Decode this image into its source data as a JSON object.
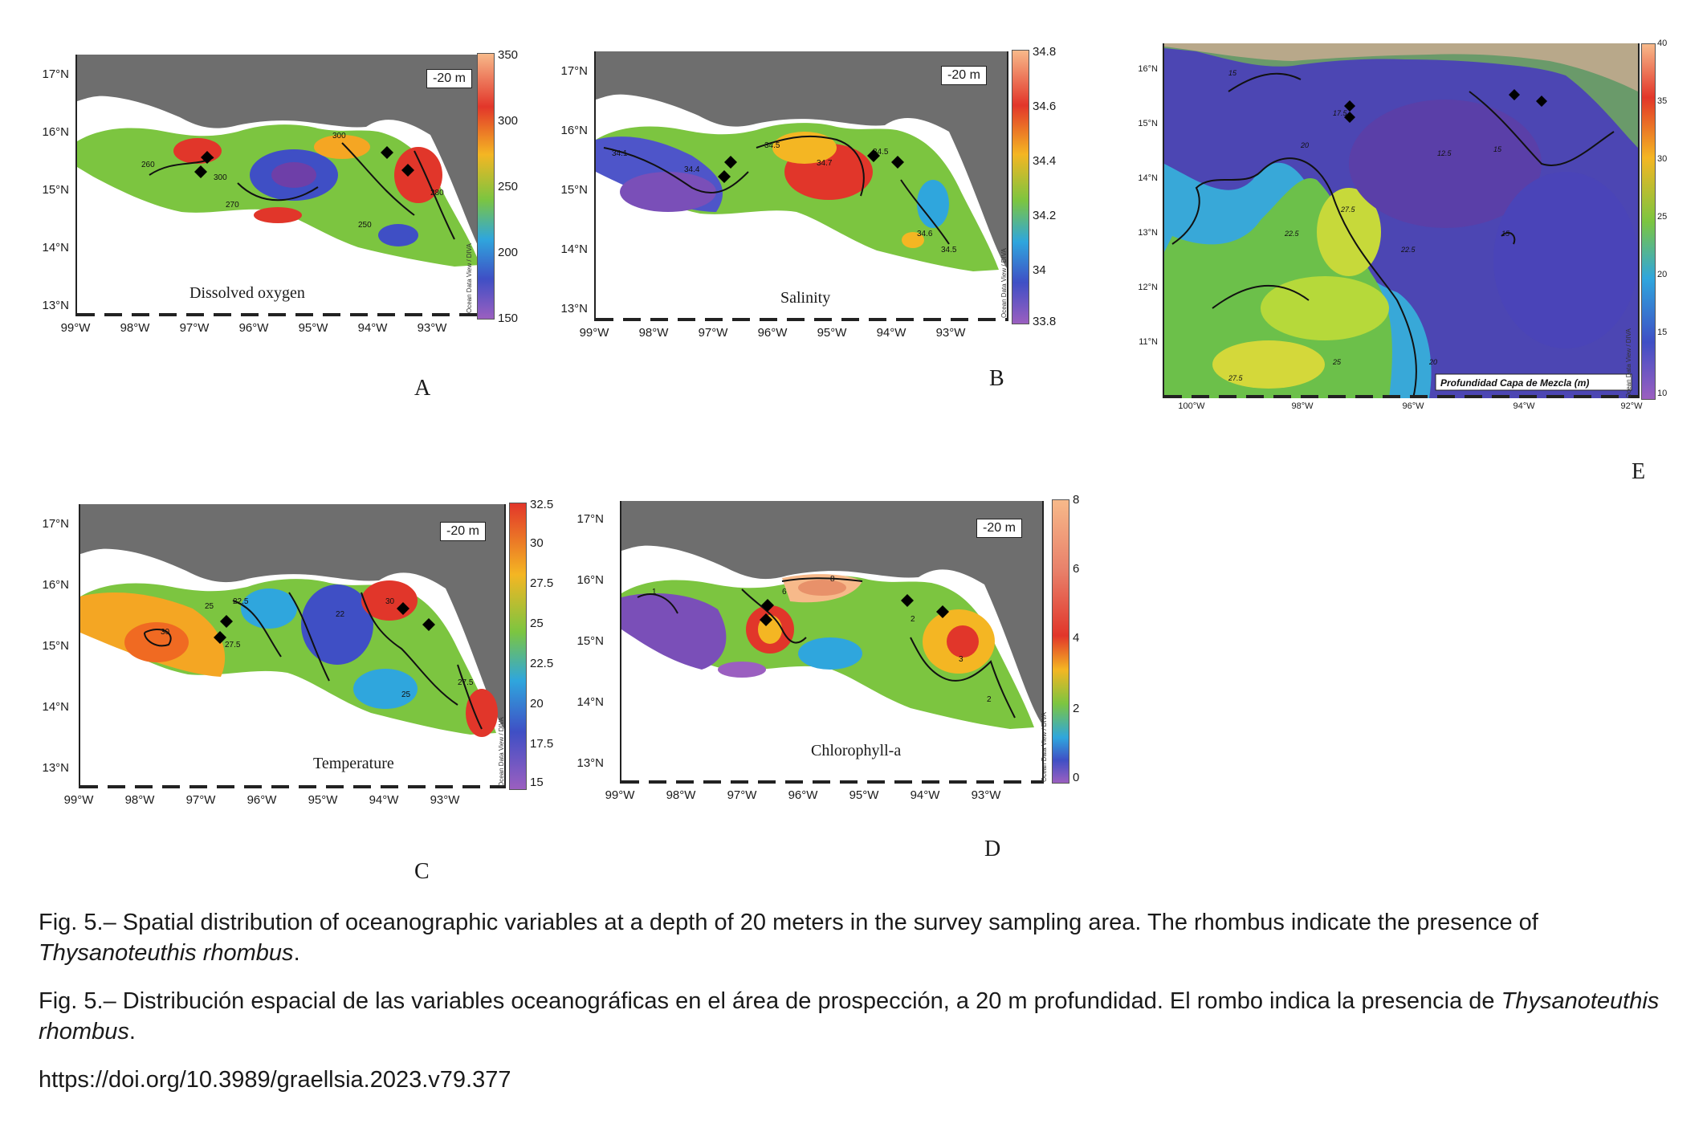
{
  "panels": {
    "A": {
      "letter": "A",
      "variable": "Dissolved oxygen",
      "depth": "-20 m",
      "lat_ticks": [
        "17°N",
        "16°N",
        "15°N",
        "14°N",
        "13°N"
      ],
      "lon_ticks": [
        "99°W",
        "98°W",
        "97°W",
        "96°W",
        "95°W",
        "94°W",
        "93°W"
      ],
      "colorbar": [
        "350",
        "300",
        "250",
        "200",
        "150"
      ],
      "contours": [
        "300",
        "260",
        "270",
        "300",
        "250",
        "280"
      ],
      "credit": "Ocean Data View / DIVA"
    },
    "B": {
      "letter": "B",
      "variable": "Salinity",
      "depth": "-20 m",
      "lat_ticks": [
        "17°N",
        "16°N",
        "15°N",
        "14°N",
        "13°N"
      ],
      "lon_ticks": [
        "99°W",
        "98°W",
        "97°W",
        "96°W",
        "95°W",
        "94°W",
        "93°W"
      ],
      "colorbar": [
        "34.8",
        "34.6",
        "34.4",
        "34.2",
        "34",
        "33.8"
      ],
      "contours": [
        "34.1",
        "34.4",
        "34.5",
        "34.7",
        "34.5",
        "34.6",
        "34.5"
      ],
      "credit": "Ocean Data View / DIVA"
    },
    "C": {
      "letter": "C",
      "variable": "Temperature",
      "depth": "-20 m",
      "lat_ticks": [
        "17°N",
        "16°N",
        "15°N",
        "14°N",
        "13°N"
      ],
      "lon_ticks": [
        "99°W",
        "98°W",
        "97°W",
        "96°W",
        "95°W",
        "94°W",
        "93°W"
      ],
      "colorbar": [
        "32.5",
        "30",
        "27.5",
        "25",
        "22.5",
        "20",
        "17.5",
        "15"
      ],
      "contours": [
        "30",
        "27.5",
        "25",
        "22.5",
        "30",
        "22",
        "25",
        "27.5"
      ],
      "credit": "Ocean Data View / DIVA"
    },
    "D": {
      "letter": "D",
      "variable": "Chlorophyll-a",
      "depth": "-20 m",
      "lat_ticks": [
        "17°N",
        "16°N",
        "15°N",
        "14°N",
        "13°N"
      ],
      "lon_ticks": [
        "99°W",
        "98°W",
        "97°W",
        "96°W",
        "95°W",
        "94°W",
        "93°W"
      ],
      "colorbar": [
        "8",
        "6",
        "4",
        "2",
        "0"
      ],
      "contours": [
        "1",
        "6",
        "8",
        "2",
        "3",
        "2"
      ],
      "credit": "Ocean Data View / DIVA"
    },
    "E": {
      "letter": "E",
      "variable": "Profundidad Capa de Mezcla (m)",
      "lat_ticks": [
        "16°N",
        "15°N",
        "14°N",
        "13°N",
        "12°N",
        "11°N"
      ],
      "lon_ticks": [
        "100°W",
        "98°W",
        "96°W",
        "94°W",
        "92°W"
      ],
      "colorbar": [
        "40",
        "35",
        "30",
        "25",
        "20",
        "15",
        "10"
      ],
      "contours": [
        "15",
        "17.5",
        "20",
        "12.5",
        "15",
        "27.5",
        "22.5",
        "22.5",
        "25",
        "27.5",
        "15",
        "20"
      ],
      "credit": "Ocean Data View / DIVA"
    }
  },
  "caption": {
    "en_prefix": "Fig. 5.– Spatial distribution of oceanographic variables at a depth of 20 meters in the survey sampling area. The rhombus indicate the presence of ",
    "en_species": "Thysanoteuthis rhombus",
    "en_suffix": ".",
    "es_prefix": "Fig. 5.– Distribución espacial de las variables oceanográficas en el área de prospección, a 20 m profundidad. El rombo indica la presencia de ",
    "es_species": "Thysanoteuthis rhombus",
    "es_suffix": ".",
    "doi": "https://doi.org/10.3989/graellsia.2023.v79.377"
  }
}
